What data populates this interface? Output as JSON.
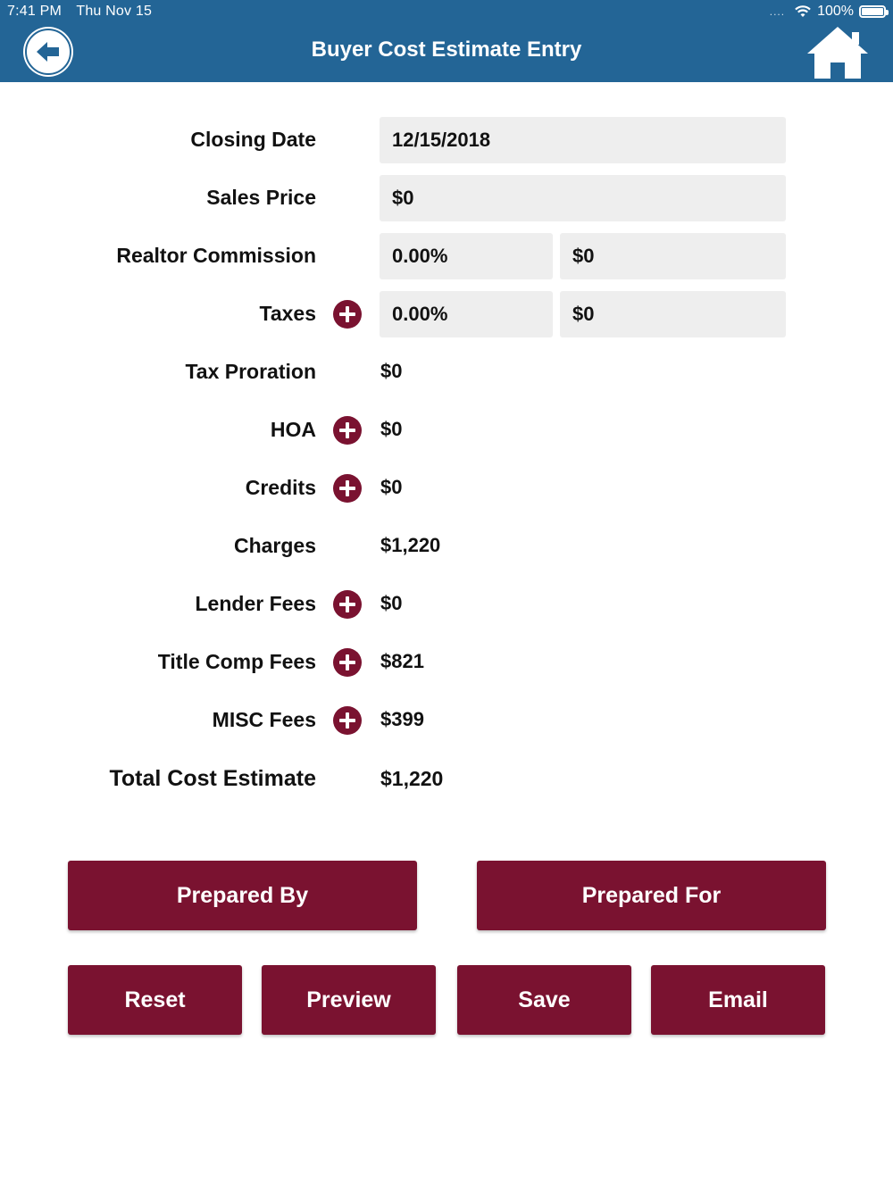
{
  "status_bar": {
    "time": "7:41 PM",
    "date": "Thu Nov 15",
    "signal_dots": "....",
    "battery": "100%"
  },
  "header": {
    "title": "Buyer Cost Estimate Entry",
    "back_icon": "back-arrow-icon",
    "home_icon": "home-icon",
    "bg_color": "#236596"
  },
  "form": {
    "closing_date": {
      "label": "Closing Date",
      "value": "12/15/2018"
    },
    "sales_price": {
      "label": "Sales Price",
      "value": "$0"
    },
    "realtor_commission": {
      "label": "Realtor Commission",
      "percent": "0.00%",
      "amount": "$0"
    },
    "taxes": {
      "label": "Taxes",
      "percent": "0.00%",
      "amount": "$0"
    },
    "tax_proration": {
      "label": "Tax Proration",
      "value": "$0"
    },
    "hoa": {
      "label": "HOA",
      "value": "$0"
    },
    "credits": {
      "label": "Credits",
      "value": "$0"
    },
    "charges": {
      "label": "Charges",
      "value": "$1,220"
    },
    "lender_fees": {
      "label": "Lender Fees",
      "value": "$0"
    },
    "title_comp_fees": {
      "label": "Title Comp Fees",
      "value": "$821"
    },
    "misc_fees": {
      "label": "MISC Fees",
      "value": "$399"
    },
    "total": {
      "label": "Total Cost Estimate",
      "value": "$1,220"
    }
  },
  "buttons": {
    "prepared_by": "Prepared By",
    "prepared_for": "Prepared For",
    "reset": "Reset",
    "preview": "Preview",
    "save": "Save",
    "email": "Email"
  },
  "colors": {
    "accent": "#7a1230",
    "field_bg": "#eeeeee"
  }
}
